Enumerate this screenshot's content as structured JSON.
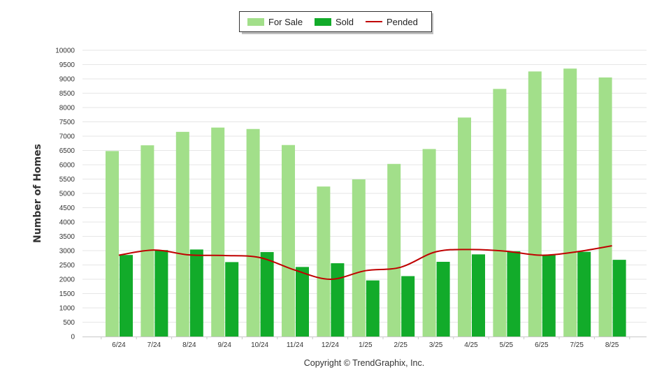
{
  "chart_data": {
    "type": "bar",
    "categories": [
      "6/24",
      "7/24",
      "8/24",
      "9/24",
      "10/24",
      "11/24",
      "12/24",
      "1/25",
      "2/25",
      "3/25",
      "4/25",
      "5/25",
      "6/25",
      "7/25",
      "8/25"
    ],
    "series": [
      {
        "name": "For Sale",
        "type": "bar",
        "color": "#a2df8a",
        "values": [
          6480,
          6680,
          7150,
          7300,
          7250,
          6690,
          5240,
          5490,
          6030,
          6550,
          7650,
          8650,
          9260,
          9360,
          9050
        ]
      },
      {
        "name": "Sold",
        "type": "bar",
        "color": "#12ab2a",
        "values": [
          2850,
          3020,
          3040,
          2600,
          2950,
          2430,
          2560,
          1960,
          2110,
          2610,
          2870,
          2980,
          2840,
          2960,
          2680
        ]
      },
      {
        "name": "Pended",
        "type": "line",
        "color": "#c00000",
        "values": [
          2840,
          3020,
          2850,
          2830,
          2760,
          2320,
          2000,
          2300,
          2420,
          2960,
          3040,
          2980,
          2840,
          2960,
          3170
        ]
      }
    ],
    "xlabel": "",
    "ylabel": "Number of Homes",
    "ylim": [
      0,
      10000
    ],
    "ytick_step": 500,
    "grid": true,
    "legend_position": "top-center"
  },
  "footer": {
    "copyright": "Copyright © TrendGraphix, Inc."
  }
}
